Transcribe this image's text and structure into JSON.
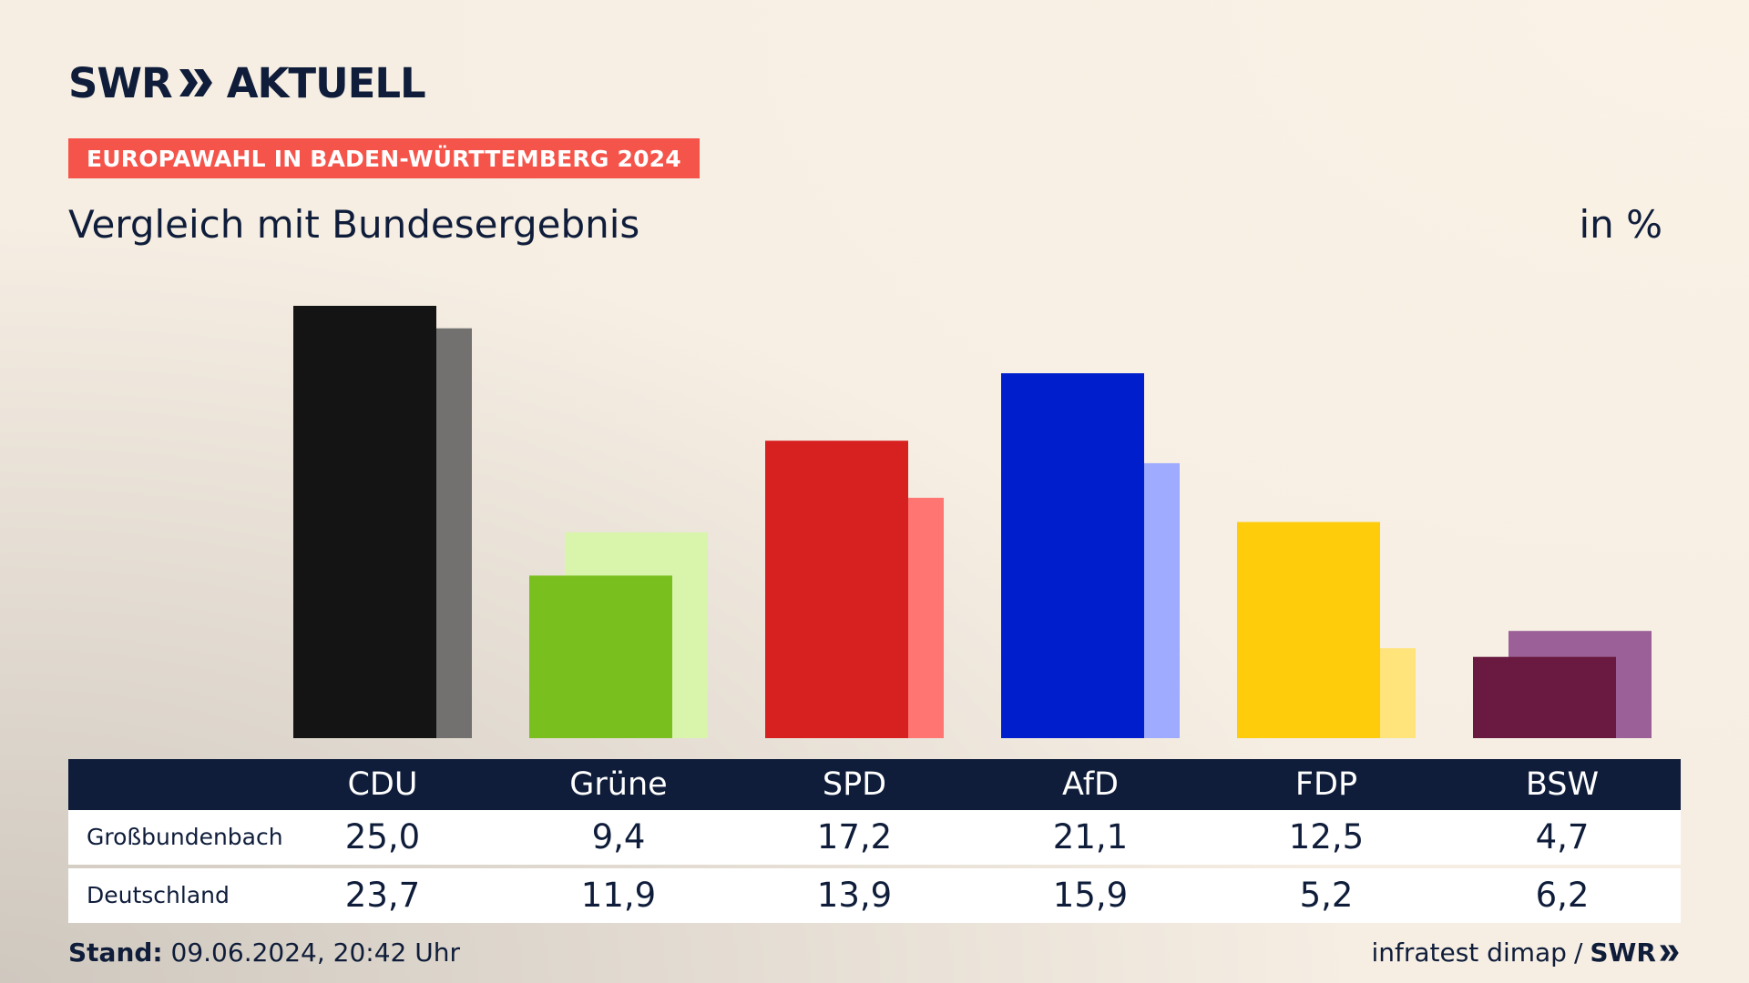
{
  "header": {
    "logo_text": "SWR",
    "logo_suffix": "AKTUELL",
    "badge": "EUROPAWAHL IN BADEN-WÜRTTEMBERG 2024",
    "subtitle": "Vergleich mit Bundesergebnis",
    "unit": "in %"
  },
  "table": {
    "rows": [
      {
        "label": "Großbundenbach"
      },
      {
        "label": "Deutschland"
      }
    ]
  },
  "footer": {
    "stand_label": "Stand:",
    "stand_value": "09.06.2024, 20:42 Uhr",
    "source": "infratest dimap",
    "separator": "/",
    "source_logo": "SWR"
  },
  "chart_data": {
    "type": "bar",
    "categories": [
      "CDU",
      "Grüne",
      "SPD",
      "AfD",
      "FDP",
      "BSW"
    ],
    "series": [
      {
        "name": "Großbundenbach",
        "values": [
          25.0,
          9.4,
          17.2,
          21.1,
          12.5,
          4.7
        ],
        "display": [
          "25,0",
          "9,4",
          "17,2",
          "21,1",
          "12,5",
          "4,7"
        ]
      },
      {
        "name": "Deutschland",
        "values": [
          23.7,
          11.9,
          13.9,
          15.9,
          5.2,
          6.2
        ],
        "display": [
          "23,7",
          "11,9",
          "13,9",
          "15,9",
          "5,2",
          "6,2"
        ]
      }
    ],
    "colors_primary": [
      "#141414",
      "#79bf1e",
      "#d72020",
      "#001ecb",
      "#ffcc0b",
      "#6a1a40"
    ],
    "colors_secondary": [
      "#727170",
      "#d8f5ab",
      "#ff7572",
      "#9eabff",
      "#ffe47c",
      "#9b6098"
    ],
    "ylim": [
      0,
      25.0
    ],
    "grid": false,
    "legend": "table-below"
  }
}
